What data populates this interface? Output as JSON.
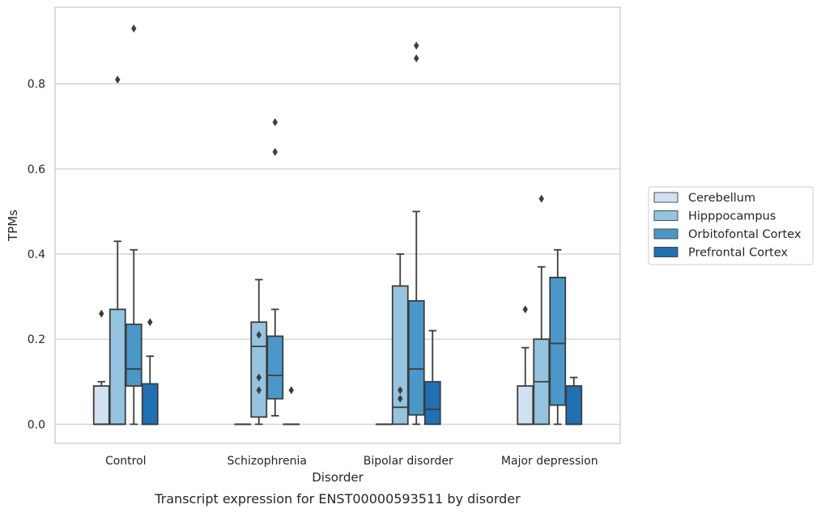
{
  "caption": "Transcript expression for ENST00000593511 by disorder",
  "chart_data": {
    "type": "box",
    "xlabel": "Disorder",
    "ylabel": "TPMs",
    "ylim": [
      -0.045,
      0.98
    ],
    "yticks": [
      0.0,
      0.2,
      0.4,
      0.6,
      0.8
    ],
    "ytick_labels": [
      "0.0",
      "0.2",
      "0.4",
      "0.6",
      "0.8"
    ],
    "grid": "horizontal",
    "legend_position": "right",
    "categories": [
      "Control",
      "Schizophrenia",
      "Bipolar disorder",
      "Major depression"
    ],
    "series": [
      {
        "name": "Cerebellum",
        "color": "#d0e1f2",
        "boxes": [
          {
            "category": "Control",
            "whislo": 0.0,
            "q1": 0.0,
            "med": 0.0,
            "q3": 0.09,
            "whishi": 0.1,
            "fliers": [
              0.26
            ]
          },
          {
            "category": "Schizophrenia",
            "whislo": 0.0,
            "q1": 0.0,
            "med": 0.0,
            "q3": 0.0,
            "whishi": 0.0,
            "fliers": []
          },
          {
            "category": "Bipolar disorder",
            "whislo": 0.0,
            "q1": 0.0,
            "med": 0.0,
            "q3": 0.0,
            "whishi": 0.0,
            "fliers": []
          },
          {
            "category": "Major depression",
            "whislo": 0.0,
            "q1": 0.0,
            "med": 0.0,
            "q3": 0.09,
            "whishi": 0.18,
            "fliers": [
              0.27
            ]
          }
        ]
      },
      {
        "name": "Hipppocampus",
        "color": "#94c4df",
        "boxes": [
          {
            "category": "Control",
            "whislo": 0.0,
            "q1": 0.0,
            "med": 0.0,
            "q3": 0.27,
            "whishi": 0.43,
            "fliers": [
              0.81
            ]
          },
          {
            "category": "Schizophrenia",
            "whislo": 0.0,
            "q1": 0.017,
            "med": 0.183,
            "q3": 0.24,
            "whishi": 0.34,
            "fliers": [
              0.21,
              0.11,
              0.08
            ]
          },
          {
            "category": "Bipolar disorder",
            "whislo": 0.0,
            "q1": 0.0,
            "med": 0.04,
            "q3": 0.325,
            "whishi": 0.4,
            "fliers": [
              0.08,
              0.06
            ]
          },
          {
            "category": "Major depression",
            "whislo": 0.0,
            "q1": 0.0,
            "med": 0.1,
            "q3": 0.2,
            "whishi": 0.37,
            "fliers": [
              0.53
            ]
          }
        ]
      },
      {
        "name": "Orbitofontal Cortex",
        "color": "#4a98c9",
        "boxes": [
          {
            "category": "Control",
            "whislo": 0.0,
            "q1": 0.09,
            "med": 0.13,
            "q3": 0.235,
            "whishi": 0.41,
            "fliers": [
              0.93
            ]
          },
          {
            "category": "Schizophrenia",
            "whislo": 0.02,
            "q1": 0.06,
            "med": 0.115,
            "q3": 0.207,
            "whishi": 0.27,
            "fliers": [
              0.71,
              0.64
            ]
          },
          {
            "category": "Bipolar disorder",
            "whislo": 0.0,
            "q1": 0.022,
            "med": 0.13,
            "q3": 0.29,
            "whishi": 0.5,
            "fliers": [
              0.89,
              0.86
            ]
          },
          {
            "category": "Major depression",
            "whislo": 0.0,
            "q1": 0.045,
            "med": 0.19,
            "q3": 0.345,
            "whishi": 0.41,
            "fliers": []
          }
        ]
      },
      {
        "name": "Prefrontal Cortex",
        "color": "#2070b4",
        "boxes": [
          {
            "category": "Control",
            "whislo": 0.0,
            "q1": 0.0,
            "med": 0.0,
            "q3": 0.095,
            "whishi": 0.16,
            "fliers": [
              0.24
            ]
          },
          {
            "category": "Schizophrenia",
            "whislo": 0.0,
            "q1": 0.0,
            "med": 0.0,
            "q3": 0.0,
            "whishi": 0.0,
            "fliers": [
              0.08
            ]
          },
          {
            "category": "Bipolar disorder",
            "whislo": 0.0,
            "q1": 0.0,
            "med": 0.035,
            "q3": 0.1,
            "whishi": 0.22,
            "fliers": []
          },
          {
            "category": "Major depression",
            "whislo": 0.0,
            "q1": 0.0,
            "med": 0.0,
            "q3": 0.09,
            "whishi": 0.11,
            "fliers": []
          }
        ]
      }
    ]
  }
}
